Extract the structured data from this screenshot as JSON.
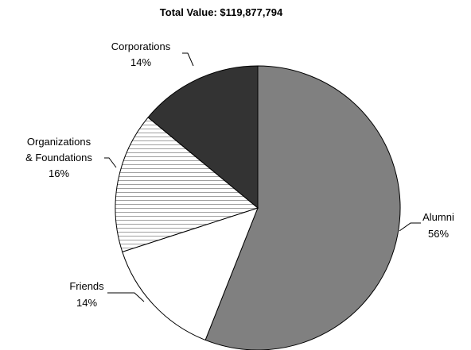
{
  "chart_data": {
    "type": "pie",
    "title": "Total Value: $119,877,794",
    "start": "12 o'clock",
    "direction": "clockwise",
    "slices": [
      {
        "label": "Alumni",
        "percent": 56,
        "percent_label": "56%",
        "fill": "#808080",
        "pattern": "solid"
      },
      {
        "label": "Friends",
        "percent": 14,
        "percent_label": "14%",
        "fill": "#ffffff",
        "pattern": "solid"
      },
      {
        "label": "Organizations & Foundations",
        "label_lines": [
          "Organizations",
          "& Foundations"
        ],
        "percent": 16,
        "percent_label": "16%",
        "fill": "#ffffff",
        "pattern": "horizontal-stripes",
        "stripe_color": "#a0a0a0"
      },
      {
        "label": "Corporations",
        "percent": 14,
        "percent_label": "14%",
        "fill": "#333333",
        "pattern": "solid"
      }
    ]
  }
}
